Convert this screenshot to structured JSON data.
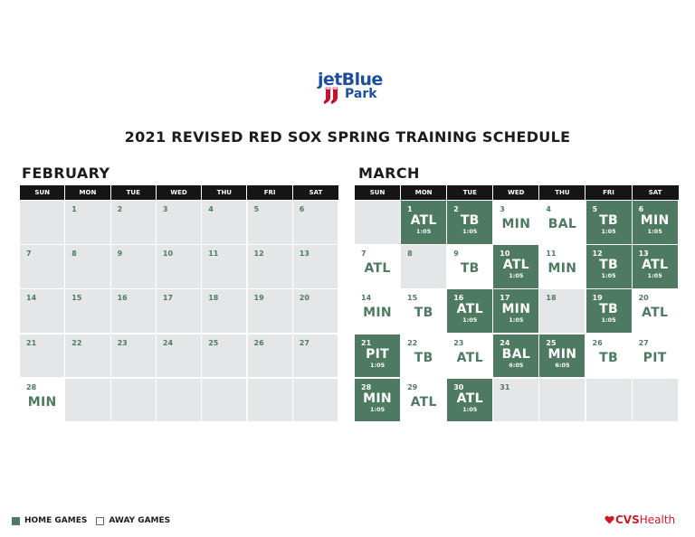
{
  "logo": {
    "brand_text": "jetBlue",
    "park_text": "Park",
    "icon": "red-sox-hanging-socks-logo"
  },
  "title": "2021 REVISED RED SOX SPRING TRAINING SCHEDULE",
  "days_of_week": [
    "SUN",
    "MON",
    "TUE",
    "WED",
    "THU",
    "FRI",
    "SAT"
  ],
  "colors": {
    "home": "#4f7a62",
    "away": "#ffffff",
    "no_game": "#e5e6e7",
    "header": "#151515",
    "brand_blue": "#1d4f9e",
    "cvs_red": "#cc1b28"
  },
  "months": [
    {
      "name": "FEBRUARY",
      "weeks": [
        [
          null,
          {
            "day": "1"
          },
          {
            "day": "2"
          },
          {
            "day": "3"
          },
          {
            "day": "4"
          },
          {
            "day": "5"
          },
          {
            "day": "6"
          }
        ],
        [
          {
            "day": "7"
          },
          {
            "day": "8"
          },
          {
            "day": "9"
          },
          {
            "day": "10"
          },
          {
            "day": "11"
          },
          {
            "day": "12"
          },
          {
            "day": "13"
          }
        ],
        [
          {
            "day": "14"
          },
          {
            "day": "15"
          },
          {
            "day": "16"
          },
          {
            "day": "17"
          },
          {
            "day": "18"
          },
          {
            "day": "19"
          },
          {
            "day": "20"
          }
        ],
        [
          {
            "day": "21"
          },
          {
            "day": "22"
          },
          {
            "day": "23"
          },
          {
            "day": "24"
          },
          {
            "day": "25"
          },
          {
            "day": "26"
          },
          {
            "day": "27"
          }
        ],
        [
          {
            "day": "28",
            "opp": "MIN",
            "type": "away"
          },
          null,
          null,
          null,
          null,
          null,
          null
        ]
      ]
    },
    {
      "name": "MARCH",
      "weeks": [
        [
          null,
          {
            "day": "1",
            "opp": "ATL",
            "time": "1:05",
            "type": "home"
          },
          {
            "day": "2",
            "opp": "TB",
            "time": "1:05",
            "type": "home"
          },
          {
            "day": "3",
            "opp": "MIN",
            "type": "away"
          },
          {
            "day": "4",
            "opp": "BAL",
            "type": "away"
          },
          {
            "day": "5",
            "opp": "TB",
            "time": "1:05",
            "type": "home"
          },
          {
            "day": "6",
            "opp": "MIN",
            "time": "1:05",
            "type": "home"
          }
        ],
        [
          {
            "day": "7",
            "opp": "ATL",
            "type": "away"
          },
          {
            "day": "8"
          },
          {
            "day": "9",
            "opp": "TB",
            "type": "away"
          },
          {
            "day": "10",
            "opp": "ATL",
            "time": "1:05",
            "type": "home"
          },
          {
            "day": "11",
            "opp": "MIN",
            "type": "away"
          },
          {
            "day": "12",
            "opp": "TB",
            "time": "1:05",
            "type": "home"
          },
          {
            "day": "13",
            "opp": "ATL",
            "time": "1:05",
            "type": "home"
          }
        ],
        [
          {
            "day": "14",
            "opp": "MIN",
            "type": "away"
          },
          {
            "day": "15",
            "opp": "TB",
            "type": "away"
          },
          {
            "day": "16",
            "opp": "ATL",
            "time": "1:05",
            "type": "home"
          },
          {
            "day": "17",
            "opp": "MIN",
            "time": "1:05",
            "type": "home"
          },
          {
            "day": "18"
          },
          {
            "day": "19",
            "opp": "TB",
            "time": "1:05",
            "type": "home"
          },
          {
            "day": "20",
            "opp": "ATL",
            "type": "away"
          }
        ],
        [
          {
            "day": "21",
            "opp": "PIT",
            "time": "1:05",
            "type": "home"
          },
          {
            "day": "22",
            "opp": "TB",
            "type": "away"
          },
          {
            "day": "23",
            "opp": "ATL",
            "type": "away"
          },
          {
            "day": "24",
            "opp": "BAL",
            "time": "6:05",
            "type": "home"
          },
          {
            "day": "25",
            "opp": "MIN",
            "time": "6:05",
            "type": "home"
          },
          {
            "day": "26",
            "opp": "TB",
            "type": "away"
          },
          {
            "day": "27",
            "opp": "PIT",
            "type": "away"
          }
        ],
        [
          {
            "day": "28",
            "opp": "MIN",
            "time": "1:05",
            "type": "home"
          },
          {
            "day": "29",
            "opp": "ATL",
            "type": "away"
          },
          {
            "day": "30",
            "opp": "ATL",
            "time": "1:05",
            "type": "home"
          },
          {
            "day": "31"
          },
          null,
          null,
          null
        ]
      ]
    }
  ],
  "legend": {
    "home_label": "HOME GAMES",
    "away_label": "AWAY GAMES"
  },
  "sponsor": {
    "icon": "heart-icon",
    "cvs_text": "CVS",
    "health_text": "Health"
  }
}
